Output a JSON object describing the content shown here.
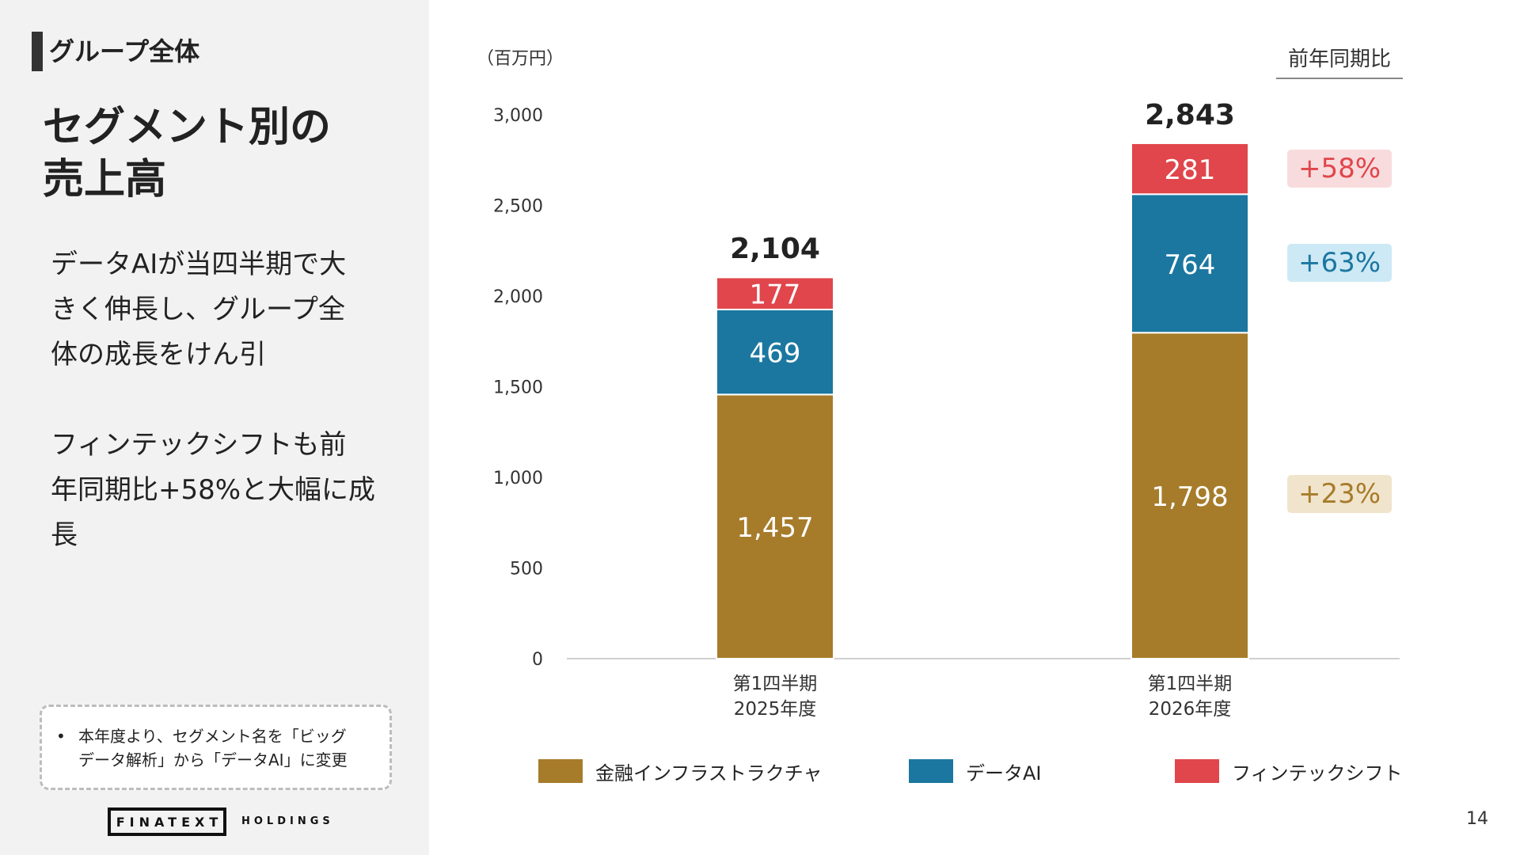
{
  "header": {
    "section_label": "グループ全体",
    "title": "セグメント別の\n売上高"
  },
  "body": {
    "paragraph_1": "データAIが当四半期で大\nきく伸長し、グループ全\n体の成長をけん引",
    "paragraph_2": "フィンテックシフトも前\n年同期比+58%と大幅に成\n長"
  },
  "note": {
    "bullet": "•",
    "text": "本年度より、セグメント名を「ビッグ\nデータ解析」から「データAI」に変更"
  },
  "logo": {
    "main": "FINATEXT",
    "sub": "HOLDINGS"
  },
  "unit_label": "（百万円）",
  "yoy_header": "前年同期比",
  "page_number": "14",
  "colors": {
    "finance_infra": "#a67c2b",
    "data_ai": "#1b77a0",
    "fintech_shift": "#e0464b",
    "panel_bg": "#f2f2f2"
  },
  "yoy": [
    {
      "series": "フィンテックシフト",
      "label": "+58%",
      "color": "#e0464b",
      "bg": "#f8dcdd"
    },
    {
      "series": "データAI",
      "label": "+63%",
      "color": "#1b77a0",
      "bg": "#cde9f6"
    },
    {
      "series": "金融インフラストラクチャ",
      "label": "+23%",
      "color": "#a67c2b",
      "bg": "#f1e4cc"
    }
  ],
  "chart_data": {
    "type": "bar",
    "stacked": true,
    "categories": [
      [
        "第1四半期",
        "2025年度"
      ],
      [
        "第1四半期",
        "2026年度"
      ]
    ],
    "series": [
      {
        "name": "金融インフラストラクチャ",
        "values": [
          1457,
          1798
        ],
        "labels": [
          "1,457",
          "1,798"
        ],
        "color": "#a67c2b"
      },
      {
        "name": "データAI",
        "values": [
          469,
          764
        ],
        "labels": [
          "469",
          "764"
        ],
        "color": "#1b77a0"
      },
      {
        "name": "フィンテックシフト",
        "values": [
          177,
          281
        ],
        "labels": [
          "177",
          "281"
        ],
        "color": "#e0464b"
      }
    ],
    "totals": [
      2104,
      2843
    ],
    "total_labels": [
      "2,104",
      "2,843"
    ],
    "ylim": [
      0,
      3000
    ],
    "yticks": [
      0,
      500,
      1000,
      1500,
      2000,
      2500,
      3000
    ],
    "ytick_labels": [
      "0",
      "500",
      "1,000",
      "1,500",
      "2,000",
      "2,500",
      "3,000"
    ],
    "ylabel": "（百万円）",
    "grid": false,
    "legend_position": "bottom"
  }
}
